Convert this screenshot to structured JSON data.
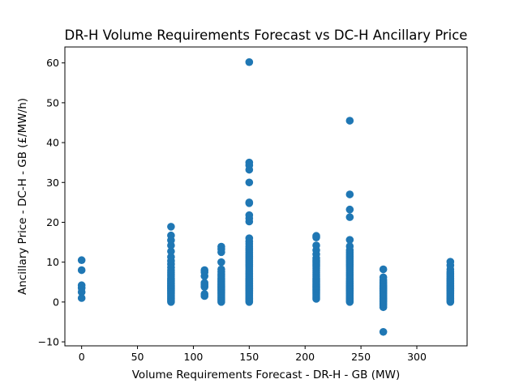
{
  "chart_data": {
    "type": "scatter",
    "title": "DR-H Volume Requirements Forecast vs DC-H Ancillary Price",
    "xlabel": "Volume Requirements Forecast - DR-H - GB (MW)",
    "ylabel": "Ancillary Price - DC-H - GB (£/MW/h)",
    "xlim": [
      -15,
      345
    ],
    "ylim": [
      -11,
      64
    ],
    "x_ticks": [
      0,
      50,
      100,
      150,
      200,
      250,
      300
    ],
    "y_ticks": [
      -10,
      0,
      10,
      20,
      30,
      40,
      50,
      60
    ],
    "grid": false,
    "marker_color": "#1f77b4",
    "series": [
      {
        "x": [
          0,
          0,
          0,
          0,
          0,
          0
        ],
        "y": [
          1,
          2.5,
          3.5,
          4.2,
          8,
          10.5
        ]
      },
      {
        "x": [
          80,
          80,
          80,
          80,
          80,
          80,
          80,
          80,
          80,
          80,
          80,
          80,
          80,
          80,
          80,
          80,
          80,
          80,
          80,
          80,
          80,
          80,
          80,
          80,
          80,
          80,
          80,
          80,
          80,
          80,
          80,
          80,
          80,
          80
        ],
        "y": [
          0,
          0.3,
          0.6,
          0.9,
          1.2,
          1.5,
          1.8,
          2.1,
          2.4,
          2.7,
          3,
          3.3,
          3.6,
          3.9,
          4.2,
          4.5,
          4.8,
          5.1,
          5.4,
          5.7,
          6,
          6.5,
          7,
          7.5,
          8,
          8.7,
          9.5,
          10.3,
          11.3,
          12.7,
          14.2,
          15.5,
          16.7,
          18.9
        ]
      },
      {
        "x": [
          110,
          110,
          110,
          110,
          110,
          110,
          110,
          110
        ],
        "y": [
          1.5,
          2,
          3.8,
          4.3,
          4.8,
          6.5,
          7.5,
          8
        ]
      },
      {
        "x": [
          125,
          125,
          125,
          125,
          125,
          125,
          125,
          125,
          125,
          125,
          125,
          125,
          125,
          125,
          125,
          125,
          125,
          125,
          125,
          125,
          125,
          125,
          125,
          125
        ],
        "y": [
          0,
          0.4,
          0.8,
          1.2,
          1.6,
          2,
          2.4,
          2.8,
          3.2,
          3.6,
          4,
          4.4,
          4.8,
          5.2,
          5.6,
          6,
          6.5,
          7,
          7.6,
          8.2,
          10,
          12.5,
          13.3,
          13.9
        ]
      },
      {
        "x": [
          150,
          150,
          150,
          150,
          150,
          150,
          150,
          150,
          150,
          150,
          150,
          150,
          150,
          150,
          150,
          150,
          150,
          150,
          150,
          150,
          150,
          150,
          150,
          150,
          150,
          150,
          150,
          150,
          150,
          150,
          150,
          150,
          150,
          150,
          150,
          150,
          150,
          150,
          150,
          150,
          150,
          150,
          150,
          150,
          150,
          150,
          150,
          150,
          150,
          150,
          150
        ],
        "y": [
          0,
          0.3,
          0.6,
          0.9,
          1.2,
          1.5,
          1.8,
          2.1,
          2.4,
          2.7,
          3,
          3.3,
          3.6,
          3.9,
          4.2,
          4.5,
          4.8,
          5.1,
          5.4,
          5.7,
          6,
          6.4,
          6.8,
          7.2,
          7.6,
          8,
          8.5,
          9,
          9.5,
          10,
          10.5,
          11,
          11.5,
          12,
          12.5,
          13,
          13.5,
          14,
          14.6,
          15.2,
          16,
          20.2,
          21,
          21.8,
          24.8,
          25,
          30,
          33.2,
          34.3,
          35,
          60.2
        ]
      },
      {
        "x": [
          210,
          210,
          210,
          210,
          210,
          210,
          210,
          210,
          210,
          210,
          210,
          210,
          210,
          210,
          210,
          210,
          210,
          210,
          210,
          210,
          210,
          210,
          210,
          210,
          210,
          210,
          210,
          210,
          210
        ],
        "y": [
          0.8,
          1.2,
          1.6,
          2,
          2.4,
          2.8,
          3.2,
          3.6,
          4,
          4.4,
          4.8,
          5.2,
          5.6,
          6,
          6.5,
          7,
          7.5,
          8,
          8.5,
          9,
          9.5,
          10,
          10.5,
          11,
          12,
          13,
          14.2,
          16.2,
          16.6
        ]
      },
      {
        "x": [
          240,
          240,
          240,
          240,
          240,
          240,
          240,
          240,
          240,
          240,
          240,
          240,
          240,
          240,
          240,
          240,
          240,
          240,
          240,
          240,
          240,
          240,
          240,
          240,
          240,
          240,
          240,
          240,
          240,
          240,
          240,
          240,
          240,
          240,
          240,
          240,
          240,
          240,
          240,
          240
        ],
        "y": [
          0,
          0.3,
          0.6,
          0.9,
          1.2,
          1.5,
          1.8,
          2.1,
          2.4,
          2.7,
          3,
          3.3,
          3.6,
          3.9,
          4.2,
          4.5,
          4.8,
          5.1,
          5.5,
          6,
          6.5,
          7,
          7.5,
          8,
          8.5,
          9,
          9.5,
          10,
          10.5,
          11,
          11.5,
          12,
          12.5,
          13,
          14,
          15.6,
          21.3,
          23.2,
          27,
          45.5
        ]
      },
      {
        "x": [
          270,
          270,
          270,
          270,
          270,
          270,
          270,
          270,
          270,
          270,
          270,
          270,
          270,
          270,
          270,
          270,
          270,
          270,
          270,
          270,
          270,
          270,
          270,
          270
        ],
        "y": [
          -7.5,
          -1.3,
          -0.8,
          -0.4,
          0,
          0.3,
          0.6,
          0.9,
          1.2,
          1.5,
          1.8,
          2.1,
          2.4,
          2.7,
          3,
          3.3,
          3.6,
          3.9,
          4.2,
          4.6,
          5,
          5.5,
          6.2,
          8.2
        ]
      },
      {
        "x": [
          330,
          330,
          330,
          330,
          330,
          330,
          330,
          330,
          330,
          330,
          330,
          330,
          330,
          330,
          330,
          330,
          330,
          330,
          330,
          330,
          330,
          330,
          330,
          330,
          330,
          330,
          330,
          330
        ],
        "y": [
          0,
          0.3,
          0.6,
          0.9,
          1.2,
          1.5,
          1.8,
          2.1,
          2.4,
          2.7,
          3,
          3.3,
          3.6,
          3.9,
          4.2,
          4.5,
          4.8,
          5.1,
          5.4,
          5.7,
          6,
          6.4,
          6.8,
          7.2,
          7.6,
          8.2,
          9.2,
          10.1
        ]
      }
    ]
  }
}
